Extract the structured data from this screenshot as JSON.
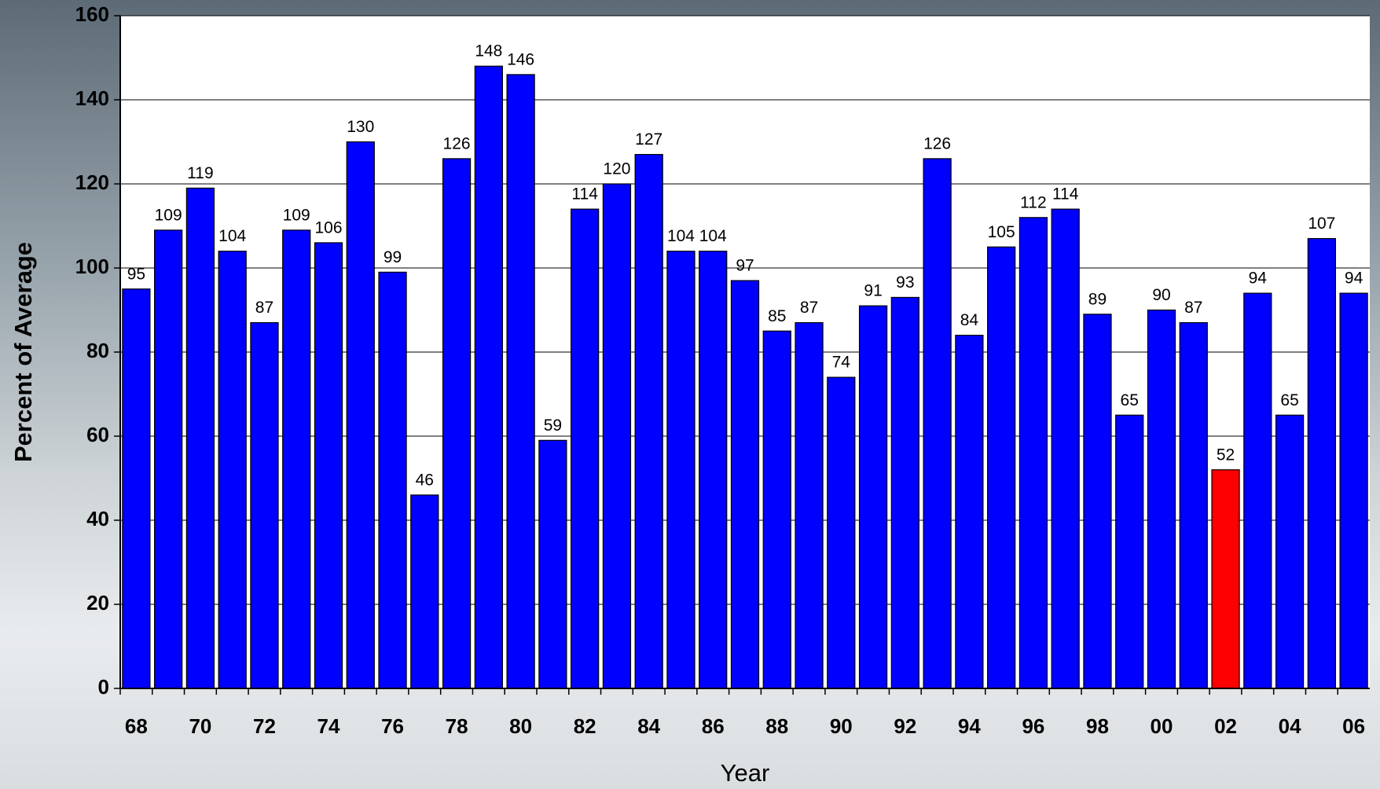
{
  "chart_data": {
    "type": "bar",
    "x_label": "Year",
    "y_label": "Percent of Average",
    "categories": [
      "68",
      null,
      "70",
      null,
      "72",
      null,
      "74",
      null,
      "76",
      null,
      "78",
      null,
      "80",
      null,
      "82",
      null,
      "84",
      null,
      "86",
      null,
      "88",
      null,
      "90",
      null,
      "92",
      null,
      "94",
      null,
      "96",
      null,
      "98",
      null,
      "00",
      null,
      "02",
      null,
      "04",
      null,
      "06"
    ],
    "values": [
      95,
      109,
      119,
      104,
      87,
      109,
      106,
      130,
      99,
      46,
      126,
      148,
      146,
      59,
      114,
      120,
      127,
      104,
      104,
      97,
      85,
      87,
      74,
      91,
      93,
      126,
      84,
      105,
      112,
      114,
      89,
      65,
      90,
      87,
      52,
      94,
      65,
      107,
      94
    ],
    "colors": [
      "#0000ff",
      "#0000ff",
      "#0000ff",
      "#0000ff",
      "#0000ff",
      "#0000ff",
      "#0000ff",
      "#0000ff",
      "#0000ff",
      "#0000ff",
      "#0000ff",
      "#0000ff",
      "#0000ff",
      "#0000ff",
      "#0000ff",
      "#0000ff",
      "#0000ff",
      "#0000ff",
      "#0000ff",
      "#0000ff",
      "#0000ff",
      "#0000ff",
      "#0000ff",
      "#0000ff",
      "#0000ff",
      "#0000ff",
      "#0000ff",
      "#0000ff",
      "#0000ff",
      "#0000ff",
      "#0000ff",
      "#0000ff",
      "#0000ff",
      "#0000ff",
      "#ff0000",
      "#0000ff",
      "#0000ff",
      "#0000ff",
      "#0000ff"
    ],
    "ylim": [
      0,
      160
    ],
    "yticks": [
      0,
      20,
      40,
      60,
      80,
      100,
      120,
      140,
      160
    ],
    "grid": true
  }
}
